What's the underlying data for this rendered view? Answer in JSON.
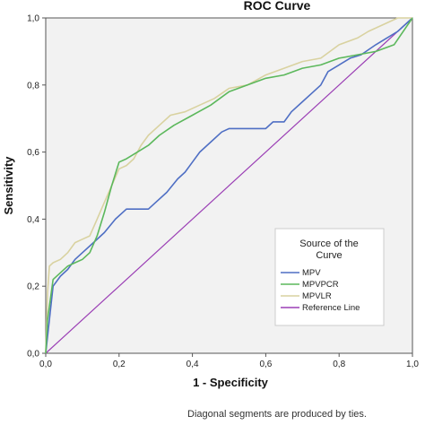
{
  "chart_data": {
    "type": "line",
    "title": "ROC Curve",
    "xlabel": "1 - Specificity",
    "ylabel": "Sensitivity",
    "xlim": [
      0,
      1
    ],
    "ylim": [
      0,
      1
    ],
    "x_ticks": [
      "0,0",
      "0,2",
      "0,4",
      "0,6",
      "0,8",
      "1,0"
    ],
    "y_ticks": [
      "0,0",
      "0,2",
      "0,4",
      "0,6",
      "0,8",
      "1,0"
    ],
    "grid": false,
    "legend": {
      "title": "Source of the Curve",
      "placement": "lower-right"
    },
    "footnote": "Diagonal segments are produced by ties.",
    "series": [
      {
        "name": "MPV",
        "color": "#4f6fc4",
        "x": [
          0,
          0.01,
          0.02,
          0.04,
          0.06,
          0.08,
          0.1,
          0.13,
          0.16,
          0.19,
          0.22,
          0.25,
          0.28,
          0.3,
          0.33,
          0.36,
          0.38,
          0.4,
          0.42,
          0.45,
          0.48,
          0.5,
          0.52,
          0.55,
          0.58,
          0.6,
          0.62,
          0.65,
          0.67,
          0.7,
          0.73,
          0.75,
          0.77,
          0.8,
          0.83,
          0.86,
          0.9,
          0.93,
          0.96,
          1.0
        ],
        "y": [
          0,
          0.1,
          0.2,
          0.23,
          0.25,
          0.28,
          0.3,
          0.33,
          0.36,
          0.4,
          0.43,
          0.43,
          0.43,
          0.45,
          0.48,
          0.52,
          0.54,
          0.57,
          0.6,
          0.63,
          0.66,
          0.67,
          0.67,
          0.67,
          0.67,
          0.67,
          0.69,
          0.69,
          0.72,
          0.75,
          0.78,
          0.8,
          0.84,
          0.86,
          0.88,
          0.89,
          0.92,
          0.94,
          0.96,
          1.0
        ]
      },
      {
        "name": "MPVPCR",
        "color": "#5cb85c",
        "x": [
          0,
          0.005,
          0.01,
          0.02,
          0.04,
          0.06,
          0.08,
          0.1,
          0.12,
          0.14,
          0.16,
          0.18,
          0.2,
          0.22,
          0.25,
          0.28,
          0.31,
          0.35,
          0.4,
          0.45,
          0.5,
          0.55,
          0.6,
          0.65,
          0.7,
          0.75,
          0.8,
          0.85,
          0.9,
          0.95,
          1.0
        ],
        "y": [
          0,
          0.1,
          0.14,
          0.22,
          0.24,
          0.26,
          0.27,
          0.28,
          0.3,
          0.35,
          0.42,
          0.5,
          0.57,
          0.58,
          0.6,
          0.62,
          0.65,
          0.68,
          0.71,
          0.74,
          0.78,
          0.8,
          0.82,
          0.83,
          0.85,
          0.86,
          0.88,
          0.89,
          0.9,
          0.92,
          1.0
        ]
      },
      {
        "name": "MPVLR",
        "color": "#d9d2a0",
        "x": [
          0,
          0.005,
          0.01,
          0.02,
          0.04,
          0.06,
          0.08,
          0.1,
          0.12,
          0.14,
          0.16,
          0.18,
          0.2,
          0.22,
          0.24,
          0.26,
          0.28,
          0.31,
          0.34,
          0.38,
          0.42,
          0.46,
          0.5,
          0.55,
          0.6,
          0.65,
          0.7,
          0.75,
          0.8,
          0.85,
          0.88,
          0.92,
          0.96,
          1.0
        ],
        "y": [
          0,
          0.18,
          0.26,
          0.27,
          0.28,
          0.3,
          0.33,
          0.34,
          0.35,
          0.4,
          0.45,
          0.5,
          0.55,
          0.56,
          0.58,
          0.62,
          0.65,
          0.68,
          0.71,
          0.72,
          0.74,
          0.76,
          0.79,
          0.8,
          0.83,
          0.85,
          0.87,
          0.88,
          0.92,
          0.94,
          0.96,
          0.98,
          1.0,
          1.0
        ]
      },
      {
        "name": "Reference Line",
        "color": "#9b3fb5",
        "x": [
          0,
          1
        ],
        "y": [
          0,
          1
        ]
      }
    ]
  }
}
